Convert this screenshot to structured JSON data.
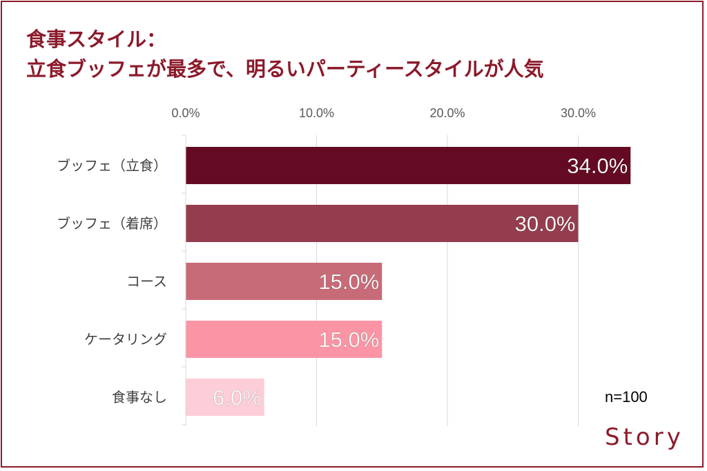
{
  "title": {
    "line1": "食事スタイル：",
    "line2": "立食ブッフェが最多で、明るいパーティースタイルが人気"
  },
  "sample_size": "n=100",
  "logo_text": "Story",
  "colors": {
    "frame": "#8b1a2b",
    "title": "#8b1a2b",
    "gridline": "#d9d9d9"
  },
  "chart_data": {
    "type": "bar",
    "orientation": "horizontal",
    "categories": [
      "ブッフェ（立食）",
      "ブッフェ（着席）",
      "コース",
      "ケータリング",
      "食事なし"
    ],
    "values": [
      34.0,
      30.0,
      15.0,
      15.0,
      6.0
    ],
    "value_labels": [
      "34.0%",
      "30.0%",
      "15.0%",
      "15.0%",
      "6.0%"
    ],
    "bar_colors": [
      "#640b23",
      "#943d4e",
      "#c86b78",
      "#fb95a5",
      "#fdcdd8"
    ],
    "xlim": [
      0,
      35
    ],
    "x_ticks": [
      0,
      10,
      20,
      30
    ],
    "x_tick_labels": [
      "0.0%",
      "10.0%",
      "20.0%",
      "30.0%"
    ],
    "axis_position": "top",
    "grid": true
  }
}
